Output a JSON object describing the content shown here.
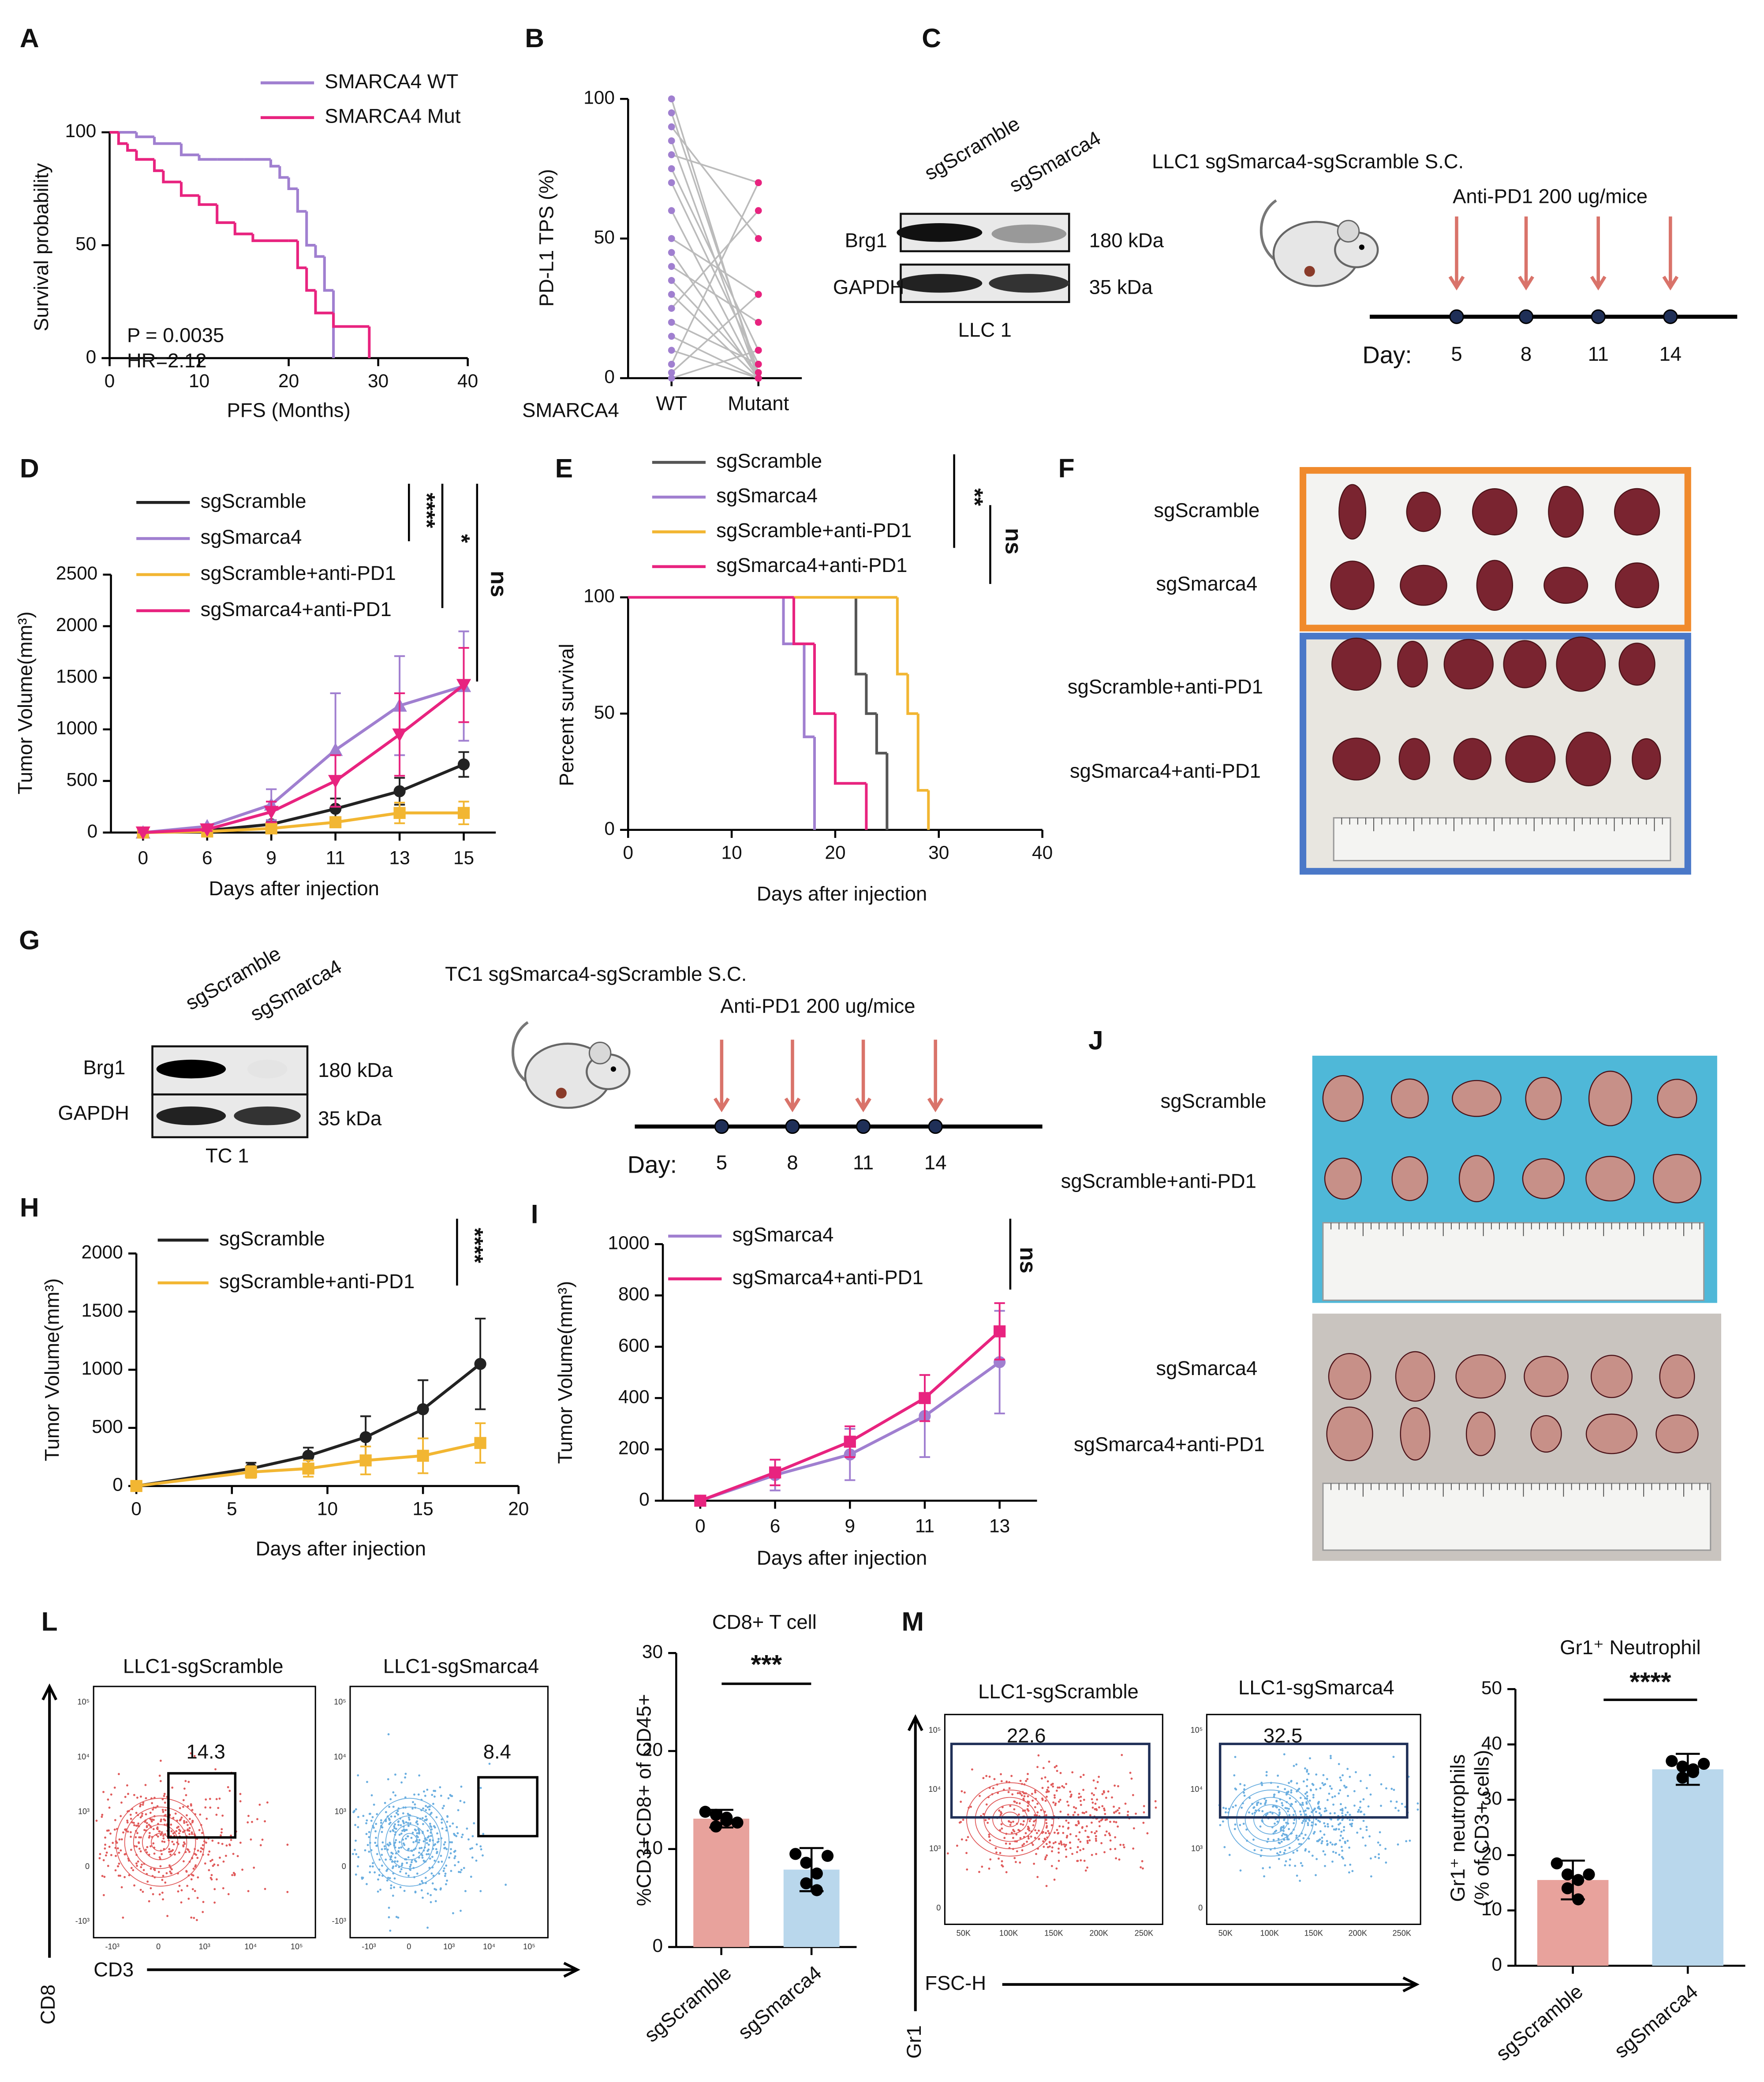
{
  "panel_letters": [
    "A",
    "B",
    "C",
    "D",
    "E",
    "F",
    "G",
    "H",
    "I",
    "J",
    "L",
    "M"
  ],
  "chart_data": [
    {
      "type": "step",
      "xlabel": "PFS (Months)",
      "ylabel": "Survival probability",
      "xlim": [
        0,
        40
      ],
      "xticks": [
        0,
        10,
        20,
        30,
        40
      ],
      "ylim": [
        0,
        100
      ],
      "yticks": [
        0,
        50,
        100
      ],
      "annotations": [
        "P = 0.0035",
        "HR=2.12"
      ],
      "series": [
        {
          "name": "SMARCA4 WT",
          "color": "#a07fd0",
          "x": [
            0,
            3,
            5,
            8,
            10,
            12,
            15,
            18,
            19,
            20,
            21,
            22,
            23,
            24,
            25
          ],
          "values": [
            100,
            98,
            95,
            90,
            88,
            88,
            88,
            85,
            80,
            75,
            65,
            50,
            45,
            30,
            0
          ]
        },
        {
          "name": "SMARCA4 Mut",
          "color": "#e8237f",
          "x": [
            0,
            1,
            2,
            3,
            5,
            6,
            8,
            10,
            12,
            14,
            16,
            20,
            21,
            22,
            23,
            25,
            29
          ],
          "values": [
            100,
            95,
            92,
            88,
            83,
            78,
            72,
            68,
            60,
            55,
            52,
            52,
            40,
            30,
            20,
            14,
            0
          ]
        }
      ]
    },
    {
      "type": "paired",
      "xlabel": "SMARCA4",
      "ylabel": "PD-L1 TPS (%)",
      "categories": [
        "WT",
        "Mutant"
      ],
      "colors": [
        "#a07fd0",
        "#e8237f"
      ],
      "line_color": "#bbbbbb",
      "ylim": [
        0,
        100
      ],
      "yticks": [
        0,
        50,
        100
      ],
      "values": [
        [
          100,
          0
        ],
        [
          95,
          2
        ],
        [
          90,
          50
        ],
        [
          85,
          0
        ],
        [
          80,
          70
        ],
        [
          75,
          10
        ],
        [
          70,
          5
        ],
        [
          60,
          0
        ],
        [
          50,
          30
        ],
        [
          45,
          0
        ],
        [
          40,
          20
        ],
        [
          35,
          2
        ],
        [
          30,
          0
        ],
        [
          25,
          60
        ],
        [
          20,
          5
        ],
        [
          15,
          0
        ],
        [
          10,
          0
        ],
        [
          5,
          70
        ],
        [
          2,
          30
        ],
        [
          0,
          10
        ]
      ]
    },
    {
      "type": "line",
      "xlabel": "Days after injection",
      "ylabel": "Tumor Volume(mm³)",
      "categories": [
        0,
        6,
        9,
        11,
        13,
        15
      ],
      "ylim": [
        0,
        2500
      ],
      "yticks": [
        0,
        500,
        1000,
        1500,
        2000,
        2500
      ],
      "series": [
        {
          "name": "sgScramble",
          "color": "#222222",
          "marker": "circle",
          "values": [
            0,
            20,
            80,
            230,
            400,
            660
          ],
          "errors": [
            0,
            10,
            40,
            100,
            130,
            120
          ]
        },
        {
          "name": "sgSmarca4",
          "color": "#a07fd0",
          "marker": "triangle",
          "values": [
            0,
            60,
            270,
            800,
            1230,
            1420
          ],
          "errors": [
            0,
            20,
            150,
            550,
            480,
            530
          ]
        },
        {
          "name": "sgScramble+anti-PD1",
          "color": "#f2b632",
          "marker": "square",
          "values": [
            0,
            10,
            40,
            100,
            190,
            190
          ],
          "errors": [
            0,
            5,
            20,
            50,
            100,
            110
          ]
        },
        {
          "name": "sgSmarca4+anti-PD1",
          "color": "#e8237f",
          "marker": "triangle-down",
          "values": [
            0,
            30,
            200,
            500,
            950,
            1430
          ],
          "errors": [
            0,
            15,
            100,
            250,
            400,
            360
          ]
        }
      ],
      "significance": [
        {
          "text": "****",
          "color": "#a07fd0"
        },
        {
          "text": "*",
          "color": "#f2b632"
        },
        {
          "text": "ns",
          "color": "#e8237f"
        }
      ]
    },
    {
      "type": "step",
      "xlabel": "Days after injection",
      "ylabel": "Percent survival",
      "xlim": [
        0,
        40
      ],
      "xticks": [
        0,
        10,
        20,
        30,
        40
      ],
      "ylim": [
        0,
        100
      ],
      "yticks": [
        0,
        50,
        100
      ],
      "series": [
        {
          "name": "sgScramble",
          "color": "#555555",
          "x": [
            0,
            22,
            23,
            24,
            25
          ],
          "values": [
            100,
            67,
            50,
            33,
            0
          ]
        },
        {
          "name": "sgSmarca4",
          "color": "#a07fd0",
          "x": [
            0,
            15,
            17,
            18
          ],
          "values": [
            100,
            80,
            40,
            0
          ]
        },
        {
          "name": "sgScramble+anti-PD1",
          "color": "#f2b632",
          "x": [
            0,
            26,
            27,
            28,
            29
          ],
          "values": [
            100,
            67,
            50,
            17,
            0
          ]
        },
        {
          "name": "sgSmarca4+anti-PD1",
          "color": "#e8237f",
          "x": [
            0,
            16,
            18,
            20,
            23
          ],
          "values": [
            100,
            80,
            50,
            20,
            0
          ]
        }
      ],
      "significance": [
        {
          "text": "**",
          "color": "#f2b632"
        },
        {
          "text": "ns",
          "color": "#e8237f"
        }
      ]
    },
    {
      "type": "line",
      "xlabel": "Days after injection",
      "ylabel": "Tumor Volume(mm³)",
      "x": [
        0,
        6,
        9,
        12,
        15,
        18
      ],
      "xlim": [
        0,
        20
      ],
      "xticks": [
        0,
        5,
        10,
        15,
        20
      ],
      "ylim": [
        0,
        2000
      ],
      "yticks": [
        0,
        500,
        1000,
        1500,
        2000
      ],
      "series": [
        {
          "name": "sgScramble",
          "color": "#222222",
          "marker": "circle",
          "values": [
            0,
            150,
            260,
            420,
            660,
            1050
          ],
          "errors": [
            0,
            50,
            70,
            180,
            250,
            390
          ]
        },
        {
          "name": "sgScramble+anti-PD1",
          "color": "#f2b632",
          "marker": "square",
          "values": [
            0,
            120,
            150,
            220,
            260,
            370
          ],
          "errors": [
            0,
            50,
            70,
            120,
            150,
            170
          ]
        }
      ],
      "significance": [
        {
          "text": "****",
          "color": "#f2b632"
        }
      ]
    },
    {
      "type": "line",
      "xlabel": "Days after injection",
      "ylabel": "Tumor Volume(mm³)",
      "categories": [
        0,
        6,
        9,
        11,
        13
      ],
      "ylim": [
        0,
        1000
      ],
      "yticks": [
        0,
        200,
        400,
        600,
        800,
        1000
      ],
      "series": [
        {
          "name": "sgSmarca4",
          "color": "#a07fd0",
          "marker": "circle",
          "values": [
            0,
            100,
            180,
            330,
            540
          ],
          "errors": [
            0,
            60,
            100,
            160,
            200
          ]
        },
        {
          "name": "sgSmarca4+anti-PD1",
          "color": "#e8237f",
          "marker": "square",
          "values": [
            0,
            110,
            230,
            400,
            660
          ],
          "errors": [
            0,
            50,
            60,
            90,
            110
          ]
        }
      ],
      "significance": [
        {
          "text": "ns",
          "color": "#e8237f"
        }
      ]
    },
    {
      "type": "bar",
      "title": "CD8+ T cell",
      "ylabel": "%CD3+CD8+ of CD45+",
      "categories": [
        "sgScramble",
        "sgSmarca4"
      ],
      "values": [
        13.1,
        7.9
      ],
      "errors": [
        0.9,
        2.2
      ],
      "points": [
        [
          13.8,
          13.5,
          12.9,
          12.3,
          13.2,
          12.7
        ],
        [
          9.5,
          8.6,
          7.5,
          6.5,
          5.8,
          9.3
        ]
      ],
      "colors": [
        "#e8a29c",
        "#b9d7ec"
      ],
      "ylim": [
        0,
        30
      ],
      "yticks": [
        0,
        10,
        20,
        30
      ],
      "significance": [
        {
          "text": "***",
          "color": "#000000"
        }
      ]
    },
    {
      "type": "bar",
      "title": "Gr1⁺ Neutrophil",
      "ylabel": [
        "Gr1⁺ neutrophils",
        "(% of CD3+ cells)"
      ],
      "categories": [
        "sgScramble",
        "sgSmarca4"
      ],
      "values": [
        15.5,
        35.5
      ],
      "errors": [
        3.5,
        2.8
      ],
      "points": [
        [
          18.5,
          16.5,
          15.5,
          14,
          12,
          16.5
        ],
        [
          37,
          36,
          35.5,
          34,
          35,
          36.5
        ]
      ],
      "colors": [
        "#e8a29c",
        "#b9d7ec"
      ],
      "ylim": [
        0,
        50
      ],
      "yticks": [
        0,
        10,
        20,
        30,
        40,
        50
      ],
      "significance": [
        {
          "text": "****",
          "color": "#000000"
        }
      ]
    }
  ],
  "blots": [
    {
      "columns": [
        "sgScramble",
        "sgSmarca4"
      ],
      "rows": [
        "Brg1",
        "GAPDH"
      ],
      "sizes": [
        "180 kDa",
        "35 kDa"
      ],
      "cell_line": "LLC 1"
    },
    {
      "columns": [
        "sgScramble",
        "sgSmarca4"
      ],
      "rows": [
        "Brg1",
        "GAPDH"
      ],
      "sizes": [
        "180 kDa",
        "35 kDa"
      ],
      "cell_line": "TC 1"
    }
  ],
  "schematics": [
    {
      "title": "LLC1 sgSmarca4-sgScramble S.C.",
      "treatment": "Anti-PD1 200 ug/mice",
      "day_label": "Day:",
      "days": [
        5,
        8,
        11,
        14
      ]
    },
    {
      "title": "TC1 sgSmarca4-sgScramble S.C.",
      "treatment": "Anti-PD1 200 ug/mice",
      "day_label": "Day:",
      "days": [
        5,
        8,
        11,
        14
      ]
    }
  ],
  "photos": [
    {
      "rows": [
        "sgScramble",
        "sgSmarca4",
        "sgScramble+anti-PD1",
        "sgSmarca4+anti-PD1"
      ]
    },
    {
      "rows": [
        "sgScramble",
        "sgScramble+anti-PD1",
        "sgSmarca4",
        "sgSmarca4+anti-PD1"
      ]
    }
  ],
  "flow": [
    {
      "plots": [
        {
          "title": "LLC1-sgScramble",
          "gate": 14.3,
          "color": "#e05a5a"
        },
        {
          "title": "LLC1-sgSmarca4",
          "gate": 8.4,
          "color": "#6aaee0"
        }
      ],
      "y_axis": "CD8",
      "x_axis": "CD3",
      "x_ticks": [
        "-10³",
        "0",
        "10³",
        "10⁴",
        "10⁵"
      ],
      "y_ticks": [
        "10⁵",
        "10⁴",
        "10³",
        "0",
        "-10³"
      ]
    },
    {
      "plots": [
        {
          "title": "LLC1-sgScramble",
          "gate": 22.6,
          "color": "#e05a5a"
        },
        {
          "title": "LLC1-sgSmarca4",
          "gate": 32.5,
          "color": "#6aaee0"
        }
      ],
      "y_axis": "Gr1",
      "x_axis": "FSC-H",
      "x_ticks": [
        "50K",
        "100K",
        "150K",
        "200K",
        "250K"
      ],
      "y_ticks": [
        "10⁵",
        "10⁴",
        "10³",
        "0"
      ]
    }
  ]
}
